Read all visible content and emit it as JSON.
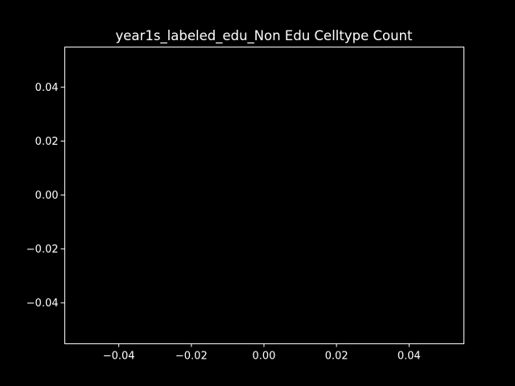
{
  "colors": {
    "background": "#000000",
    "foreground": "#ffffff"
  },
  "chart_data": {
    "type": "bar",
    "title": "year1s_labeled_edu_Non Edu Celltype Count",
    "xlabel": "",
    "ylabel": "",
    "categories": [],
    "values": [],
    "xlim": [
      -0.055,
      0.055
    ],
    "ylim": [
      -0.055,
      0.055
    ],
    "x_ticks": [
      -0.04,
      -0.02,
      0.0,
      0.02,
      0.04
    ],
    "x_tick_labels": [
      "−0.04",
      "−0.02",
      "0.00",
      "0.02",
      "0.04"
    ],
    "y_ticks": [
      -0.04,
      -0.02,
      0.0,
      0.02,
      0.04
    ],
    "y_tick_labels": [
      "−0.04",
      "−0.02",
      "0.00",
      "0.02",
      "0.04"
    ],
    "grid": false,
    "legend": "none"
  }
}
